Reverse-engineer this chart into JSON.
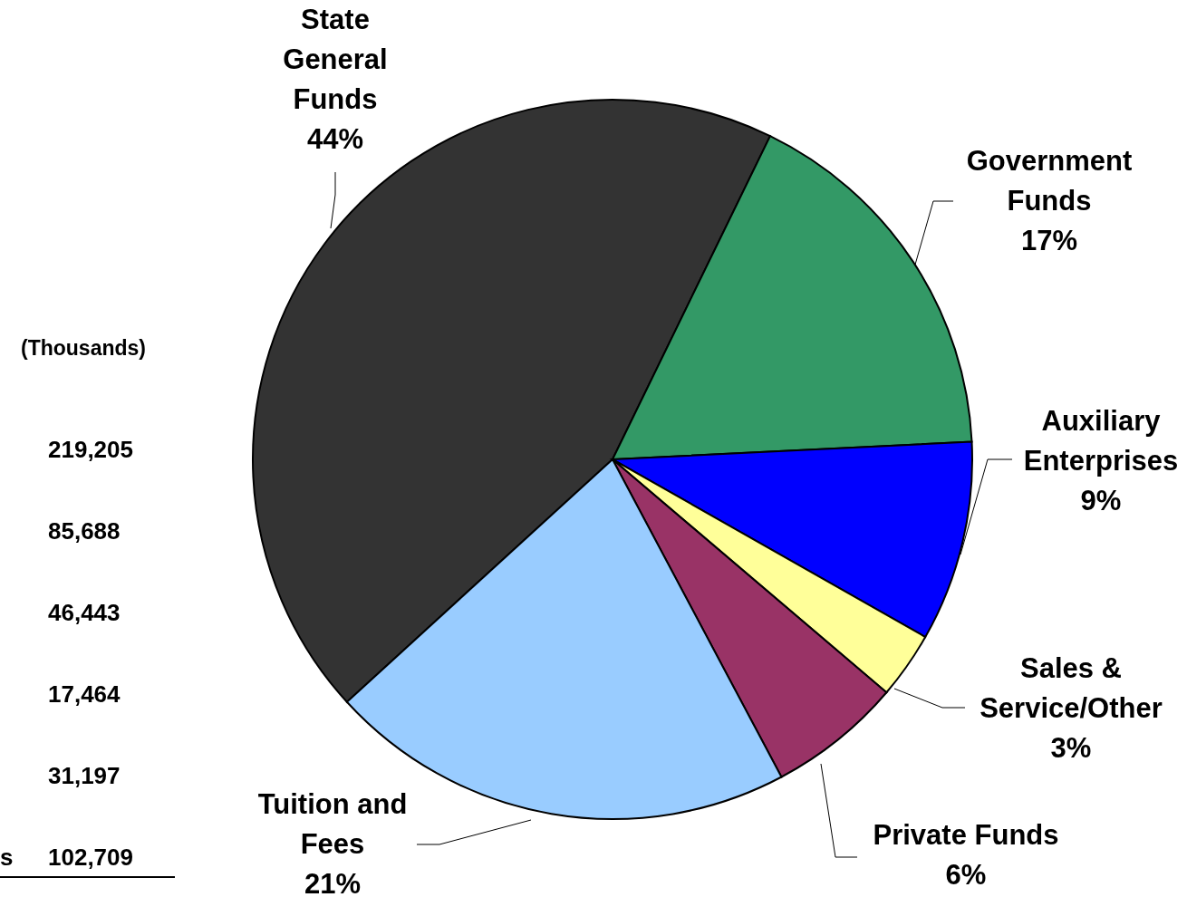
{
  "chart_data": {
    "type": "pie",
    "categories": [
      "State General Funds",
      "Government Funds",
      "Auxiliary Enterprises",
      "Sales & Service/Other",
      "Private Funds",
      "Tuition and Fees"
    ],
    "values": [
      44,
      17,
      9,
      3,
      6,
      21
    ],
    "colors": [
      "#333333",
      "#339966",
      "#0000ff",
      "#ffff99",
      "#993366",
      "#99ccff"
    ],
    "value_labels": [
      "44%",
      "17%",
      "9%",
      "3%",
      "6%",
      "21%"
    ],
    "annotations": [
      "(Thousands)",
      "219,205",
      "85,688",
      "46,443",
      "17,464",
      "31,197",
      "102,709",
      "s"
    ]
  }
}
